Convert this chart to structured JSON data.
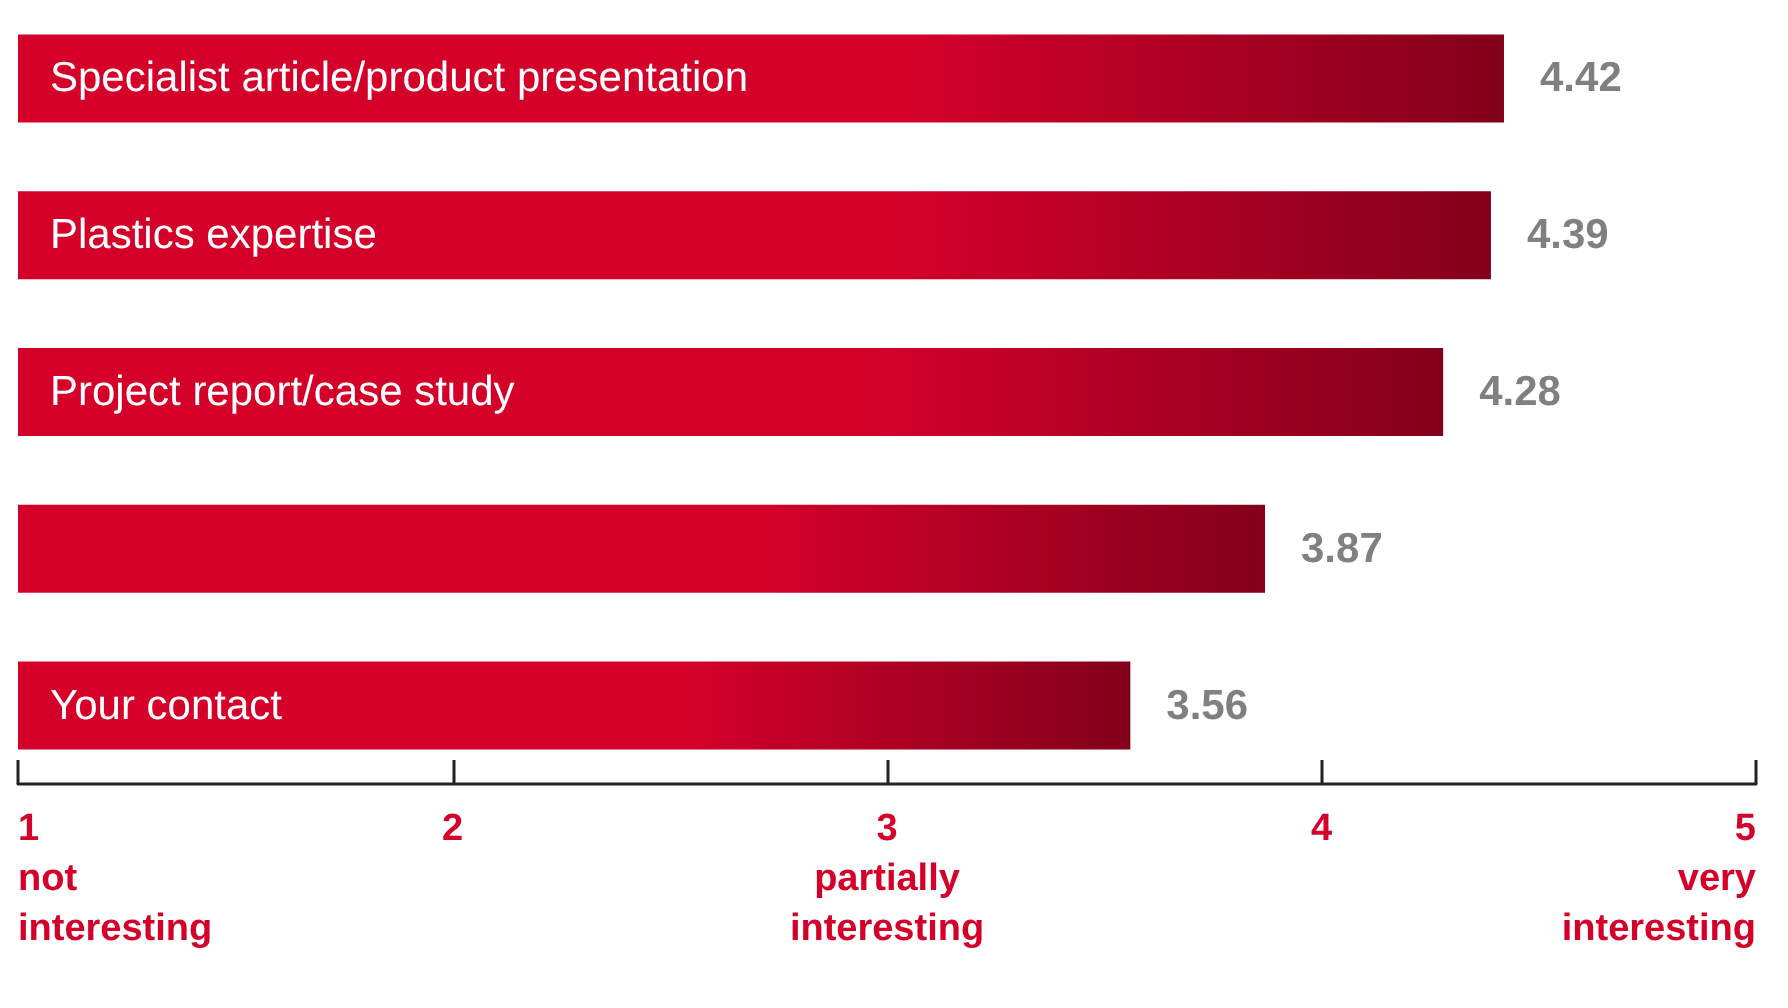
{
  "chart_data": {
    "type": "bar",
    "orientation": "horizontal",
    "categories": [
      "Specialist article/product presentation",
      "Plastics expertise",
      "Project report/case study",
      null,
      "Your contact"
    ],
    "values": [
      4.42,
      4.39,
      4.28,
      3.87,
      3.56
    ],
    "color": "#d4002a",
    "data_labels": true,
    "xlim": [
      1,
      5
    ],
    "xticks": [
      {
        "value": 1,
        "label": "1\nnot\ninteresting"
      },
      2,
      {
        "value": 3,
        "label": "3\npartially\ninteresting"
      },
      4,
      {
        "value": 5,
        "label": "5\nvery\ninteresting"
      }
    ],
    "grid": false
  }
}
